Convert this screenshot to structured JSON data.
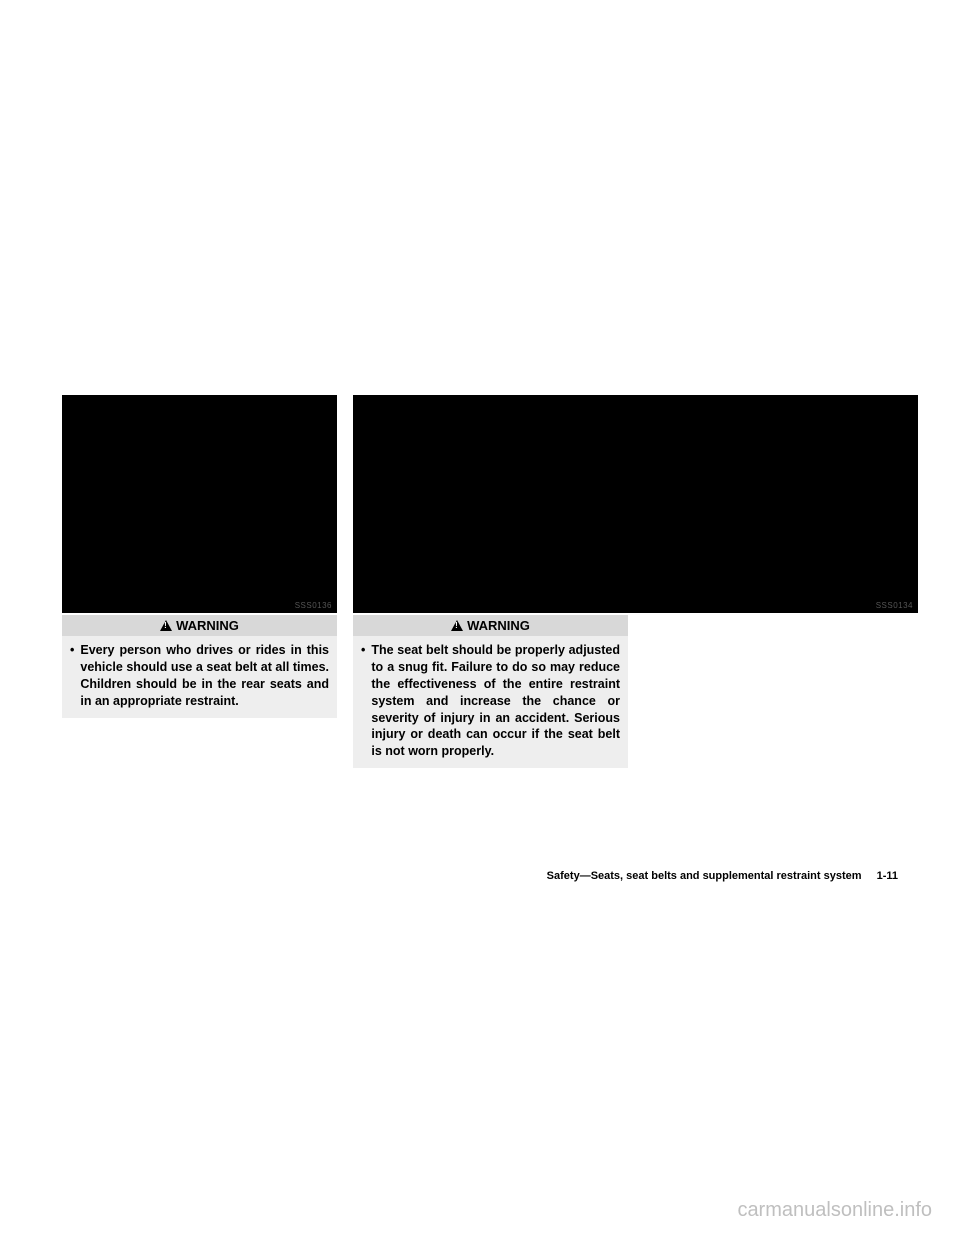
{
  "figure1": {
    "code": "SSS0136"
  },
  "figure2": {
    "code": "SSS0134"
  },
  "warning1": {
    "header": "WARNING",
    "bullet": "•",
    "text": "Every person who drives or rides in this vehicle should use a seat belt at all times. Children should be in the rear seats and in an appropriate restraint."
  },
  "warning2": {
    "header": "WARNING",
    "bullet": "•",
    "text": "The seat belt should be properly adjusted to a snug fit. Failure to do so may reduce the effectiveness of the entire restraint system and increase the chance or severity of injury in an accident. Serious injury or death can occur if the seat belt is not worn properly."
  },
  "footer": {
    "section": "Safety—Seats, seat belts and supplemental restraint system",
    "page": "1-11"
  },
  "watermark": "carmanualsonline.info",
  "colors": {
    "background": "#ffffff",
    "headerGray": "#d8d8d8",
    "bodyGray": "#eeeeee",
    "watermark": "#bfbfbf"
  }
}
